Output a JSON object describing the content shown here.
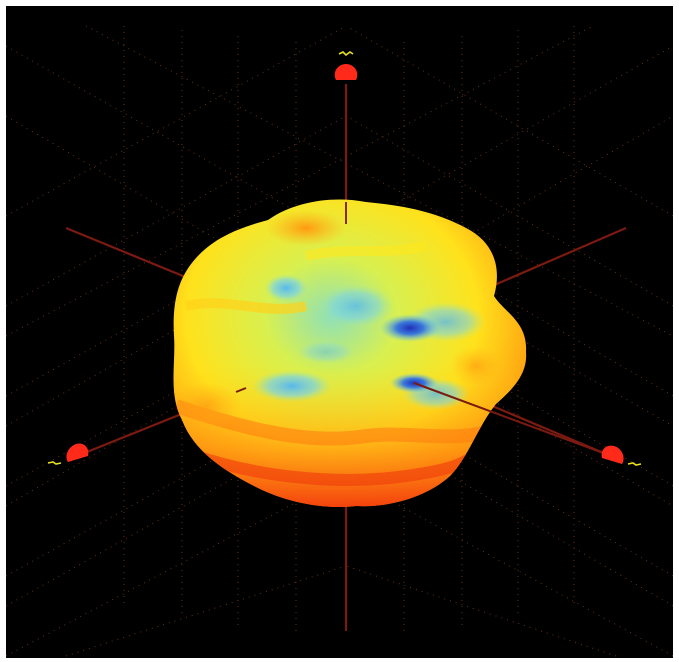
{
  "scene": {
    "background_color": "#000000",
    "axis_color": "#7a1a10",
    "grid_color": "#7a3a20",
    "marker_color": "#ff2a1a",
    "marker_label_color": "#e8e020",
    "surface_colors": {
      "high": "#e8200e",
      "mid_high": "#ff9a10",
      "mid": "#ffe21c",
      "mid_low": "#b8ec6a",
      "low": "#5ec8ee",
      "lowest": "#2440c8"
    },
    "axis_markers": [
      {
        "name": "top-axis-marker",
        "icon": "cone-marker-icon"
      },
      {
        "name": "left-axis-marker",
        "icon": "cone-marker-icon"
      },
      {
        "name": "right-axis-marker",
        "icon": "cone-marker-icon"
      }
    ]
  }
}
